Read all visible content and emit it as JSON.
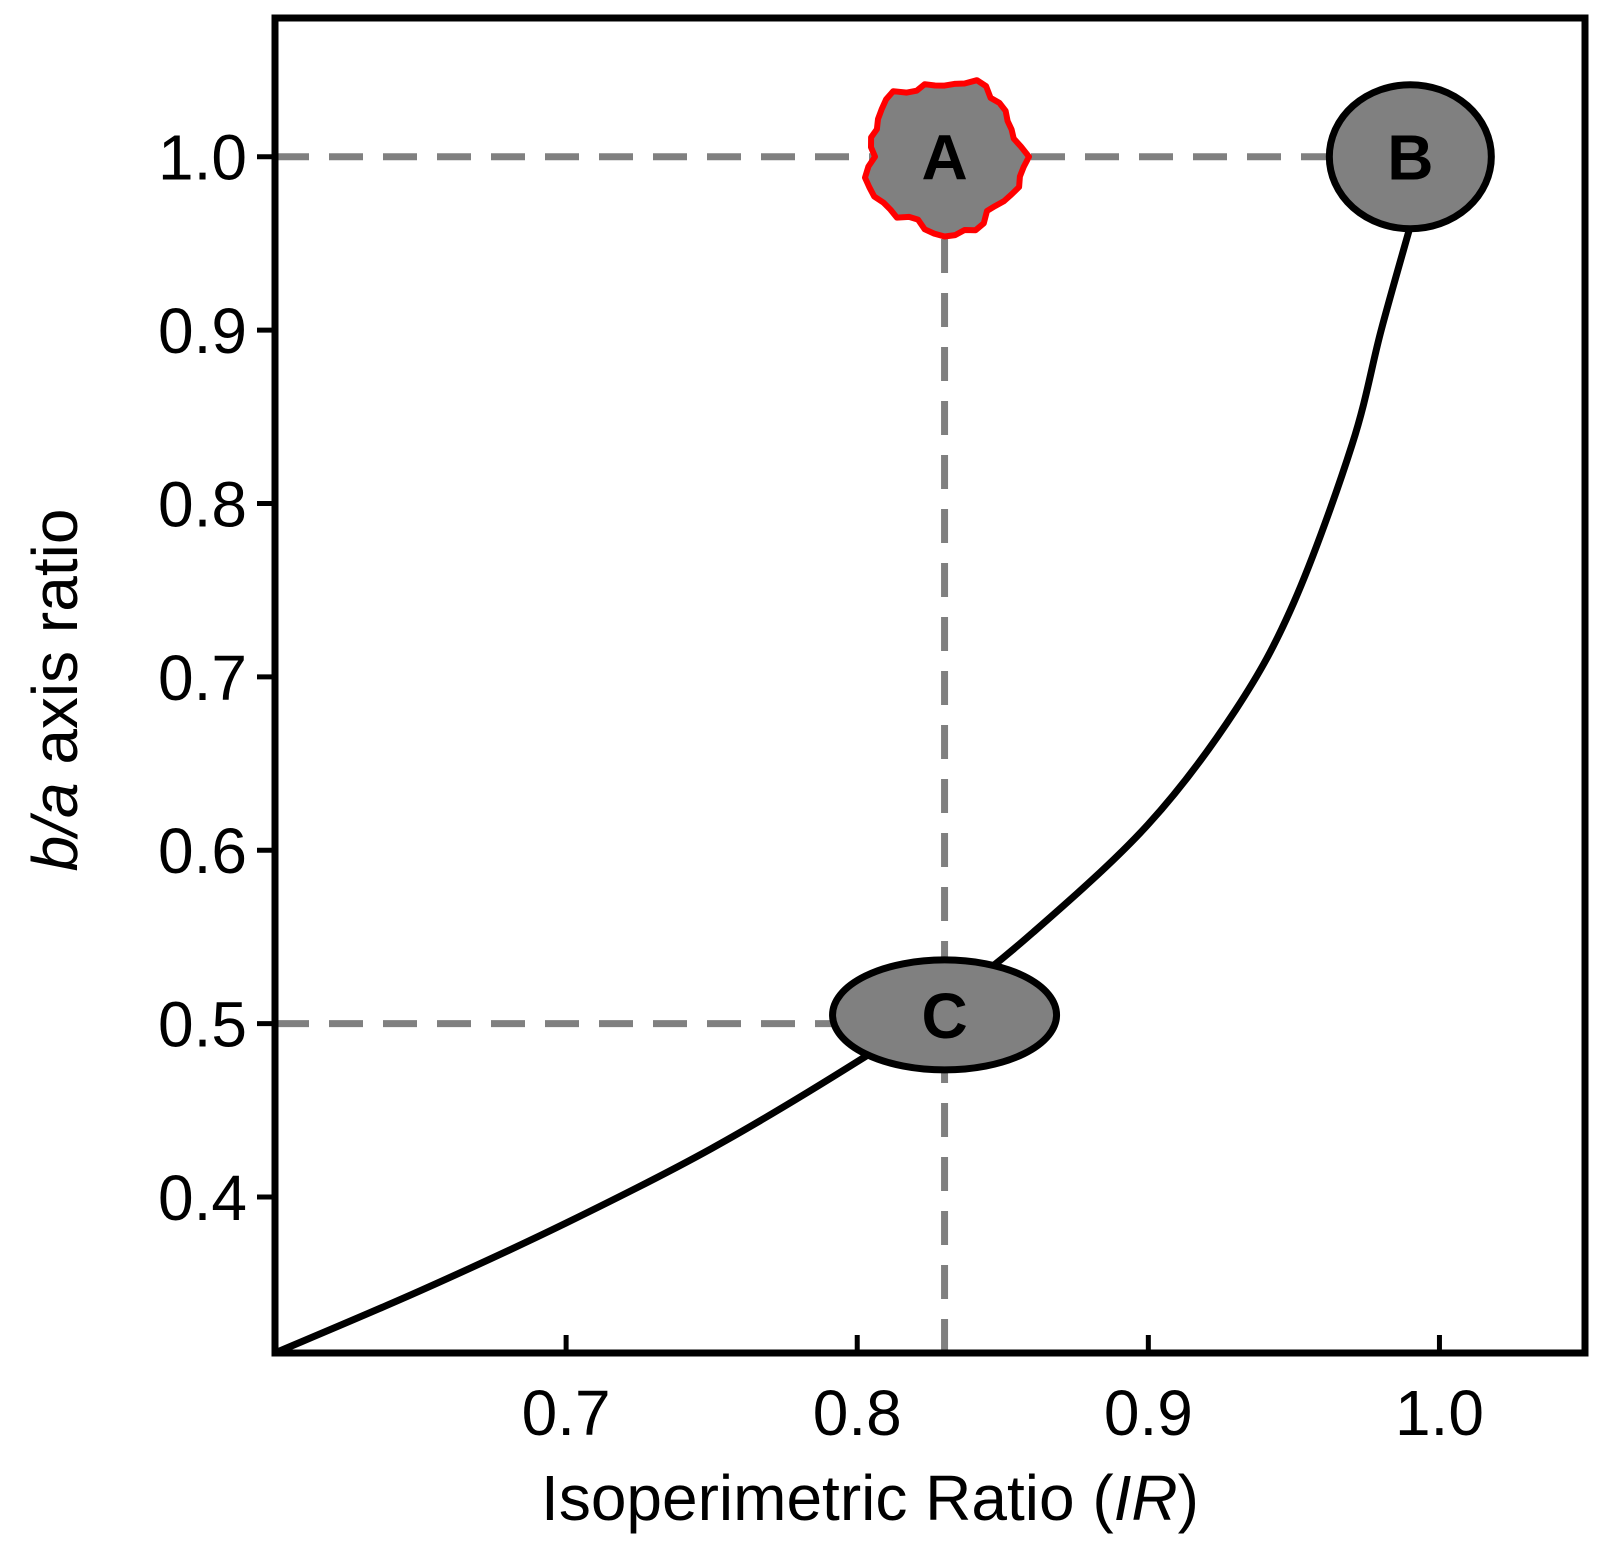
{
  "chart_data": {
    "type": "line",
    "xlabel_main": "Isoperimetric Ratio (",
    "xlabel_var": "IR",
    "xlabel_close": ")",
    "ylabel_var": "b/a",
    "ylabel_rest": " axis ratio",
    "xlim": [
      0.6,
      1.05
    ],
    "ylim": [
      0.31,
      1.08
    ],
    "x_ticks": [
      0.7,
      0.8,
      0.9,
      1.0
    ],
    "x_tick_labels": [
      "0.7",
      "0.8",
      "0.9",
      "1.0"
    ],
    "y_ticks": [
      0.4,
      0.5,
      0.6,
      0.7,
      0.8,
      0.9,
      1.0
    ],
    "y_tick_labels": [
      "0.4",
      "0.5",
      "0.6",
      "0.7",
      "0.8",
      "0.9",
      "1.0"
    ],
    "grid": false,
    "curve": {
      "x": [
        0.6,
        0.65,
        0.7,
        0.75,
        0.8,
        0.83,
        0.86,
        0.9,
        0.93,
        0.95,
        0.97,
        0.98,
        0.99
      ],
      "y": [
        0.31,
        0.346,
        0.385,
        0.428,
        0.478,
        0.512,
        0.552,
        0.615,
        0.681,
        0.743,
        0.834,
        0.9,
        0.96
      ]
    },
    "reference_lines": [
      {
        "orientation": "horizontal",
        "y": 1.0,
        "x_from": 0.6,
        "x_to": 0.99
      },
      {
        "orientation": "horizontal",
        "y": 0.5,
        "x_from": 0.6,
        "x_to": 0.83
      },
      {
        "orientation": "vertical",
        "x": 0.83,
        "y_from": 0.31,
        "y_to": 1.0
      }
    ],
    "markers": [
      {
        "label": "A",
        "x": 0.83,
        "y": 1.0,
        "shape": "irregular",
        "fill": "#808080",
        "stroke": "#ff0000"
      },
      {
        "label": "B",
        "x": 0.99,
        "y": 1.0,
        "shape": "ellipse",
        "fill": "#808080",
        "stroke": "#000000"
      },
      {
        "label": "C",
        "x": 0.83,
        "y": 0.505,
        "shape": "ellipse",
        "fill": "#808080",
        "stroke": "#000000"
      }
    ],
    "colors": {
      "curve": "#000000",
      "reference": "#808080",
      "marker_fill": "#808080",
      "marker_a_outline": "#ff0000",
      "marker_outline": "#000000"
    }
  }
}
